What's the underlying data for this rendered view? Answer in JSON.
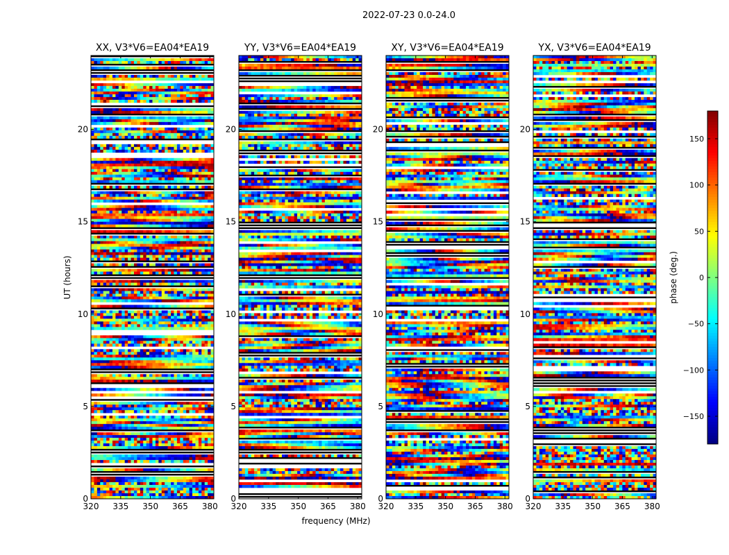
{
  "figure_title": "2022-07-23 0.0-24.0",
  "chart_data": {
    "type": "heatmap",
    "suptitle": "2022-07-23 0.0-24.0",
    "xlabel": "frequency (MHz)",
    "ylabel": "UT (hours)",
    "xlim": [
      320,
      382
    ],
    "ylim": [
      0,
      24
    ],
    "xticks": [
      320,
      335,
      350,
      365,
      380
    ],
    "yticks": [
      0,
      5,
      10,
      15,
      20
    ],
    "panels": [
      {
        "title": "XX, V3*V6=EA04*EA19",
        "pol": "XX"
      },
      {
        "title": "YY, V3*V6=EA04*EA19",
        "pol": "YY"
      },
      {
        "title": "XY, V3*V6=EA04*EA19",
        "pol": "XY"
      },
      {
        "title": "YX, V3*V6=EA04*EA19",
        "pol": "YX"
      }
    ],
    "colorbar": {
      "label": "phase (deg.)",
      "colormap": "jet",
      "vmin": -180,
      "vmax": 180,
      "ticks": [
        -150,
        -100,
        -50,
        0,
        50,
        100,
        150
      ]
    },
    "grid": false
  }
}
